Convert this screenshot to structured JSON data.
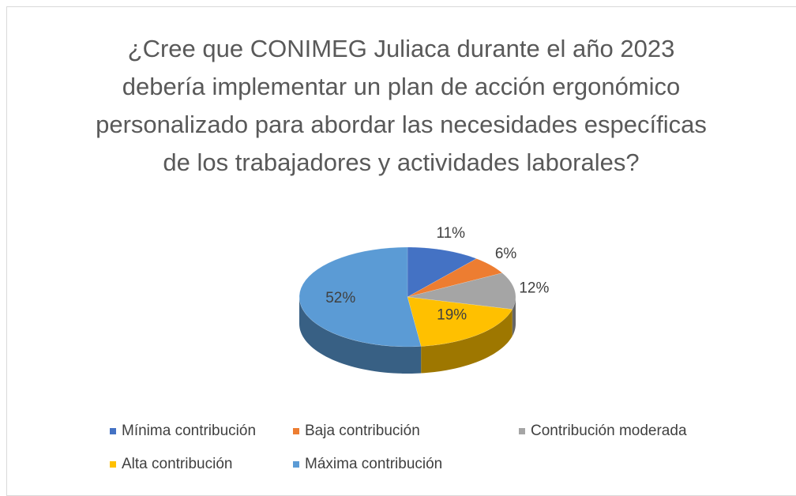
{
  "chart_data": {
    "type": "pie3d",
    "title": "¿Cree que CONIMEG Juliaca durante el año 2023 debería implementar un plan de acción ergonómico personalizado para abordar las necesidades específicas de los trabajadores y actividades laborales?",
    "categories": [
      "Mínima contribución",
      "Baja contribución",
      "Contribución moderada",
      "Alta contribución",
      "Máxima contribución"
    ],
    "values": [
      11,
      6,
      12,
      19,
      52
    ],
    "value_labels": [
      "11%",
      "6%",
      "12%",
      "19%",
      "52%"
    ],
    "colors": [
      "#4472c4",
      "#ed7d31",
      "#a5a5a5",
      "#ffc000",
      "#5b9bd5"
    ],
    "legend": "bottom"
  }
}
